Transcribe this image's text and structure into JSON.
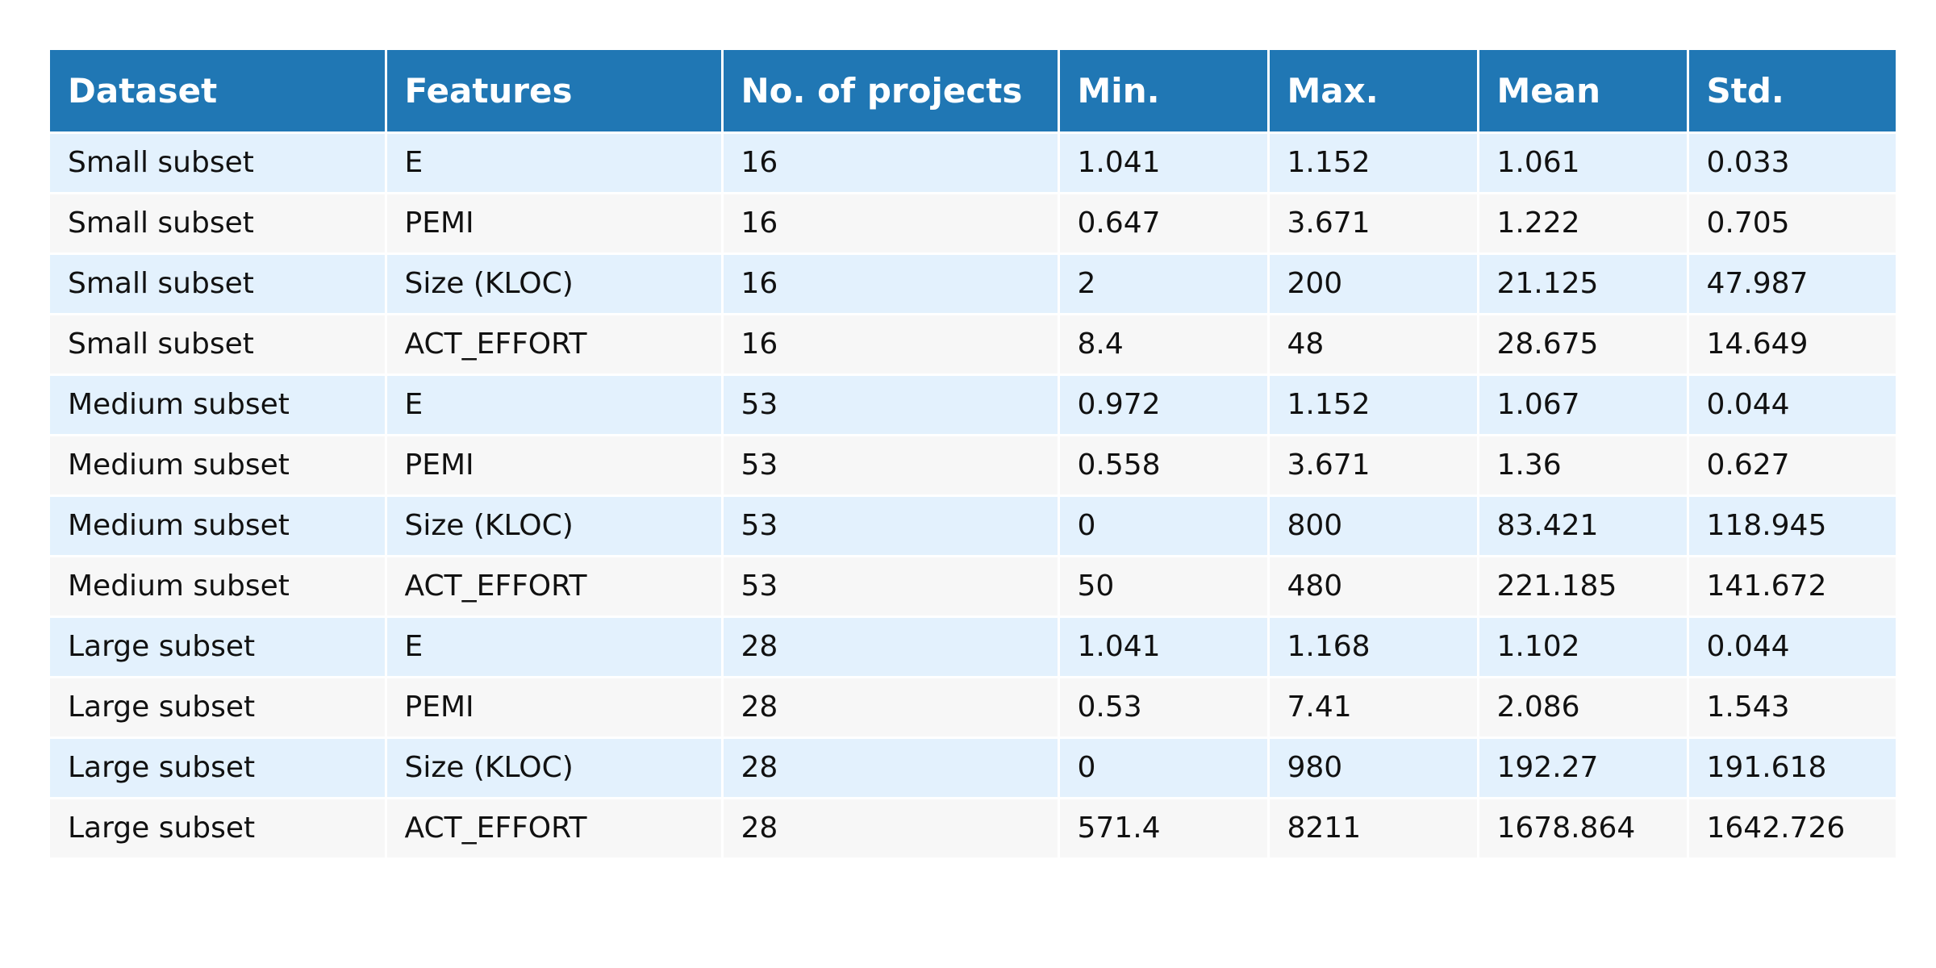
{
  "chart_data": {
    "type": "table",
    "columns": [
      "Dataset",
      "Features",
      "No. of projects",
      "Min.",
      "Max.",
      "Mean",
      "Std."
    ],
    "rows": [
      [
        "Small subset",
        "E",
        "16",
        "1.041",
        "1.152",
        "1.061",
        "0.033"
      ],
      [
        "Small subset",
        "PEMI",
        "16",
        "0.647",
        "3.671",
        "1.222",
        "0.705"
      ],
      [
        "Small subset",
        "Size (KLOC)",
        "16",
        "2",
        "200",
        "21.125",
        "47.987"
      ],
      [
        "Small subset",
        "ACT_EFFORT",
        "16",
        "8.4",
        "48",
        "28.675",
        "14.649"
      ],
      [
        "Medium subset",
        "E",
        "53",
        "0.972",
        "1.152",
        "1.067",
        "0.044"
      ],
      [
        "Medium subset",
        "PEMI",
        "53",
        "0.558",
        "3.671",
        "1.36",
        "0.627"
      ],
      [
        "Medium subset",
        "Size (KLOC)",
        "53",
        "0",
        "800",
        "83.421",
        "118.945"
      ],
      [
        "Medium subset",
        "ACT_EFFORT",
        "53",
        "50",
        "480",
        "221.185",
        "141.672"
      ],
      [
        "Large subset",
        "E",
        "28",
        "1.041",
        "1.168",
        "1.102",
        "0.044"
      ],
      [
        "Large subset",
        "PEMI",
        "28",
        "0.53",
        "7.41",
        "2.086",
        "1.543"
      ],
      [
        "Large subset",
        "Size (KLOC)",
        "28",
        "0",
        "980",
        "192.27",
        "191.618"
      ],
      [
        "Large subset",
        "ACT_EFFORT",
        "28",
        "571.4",
        "8211",
        "1678.864",
        "1642.726"
      ]
    ],
    "colors": {
      "header_bg": "#2077b4",
      "header_text": "#ffffff",
      "row_odd_bg": "#e3f1fd",
      "row_even_bg": "#f7f7f7"
    }
  }
}
